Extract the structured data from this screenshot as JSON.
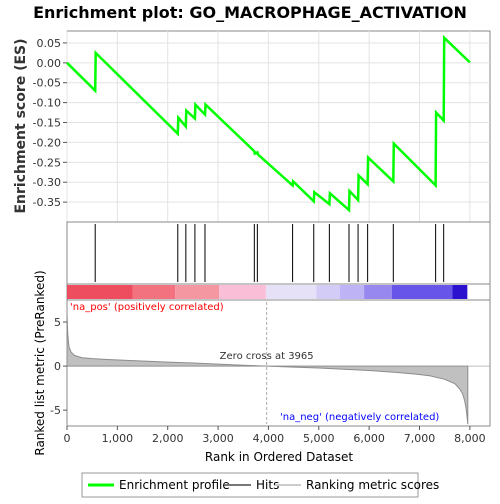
{
  "chart_data": {
    "type": "line",
    "title": "Enrichment plot: GO_MACROPHAGE_ACTIVATION",
    "xlabel": "Rank in Ordered Dataset",
    "x_ticks": [
      0,
      1000,
      2000,
      3000,
      4000,
      5000,
      6000,
      7000,
      8000
    ],
    "x_tick_labels": [
      "0",
      "1,000",
      "2,000",
      "3,000",
      "4,000",
      "5,000",
      "6,000",
      "7,000",
      "8,000"
    ],
    "xlim": [
      0,
      8400
    ],
    "es_panel": {
      "ylabel": "Enrichment score (ES)",
      "ylim": [
        -0.4,
        0.08
      ],
      "y_ticks": [
        0.05,
        0.0,
        -0.05,
        -0.1,
        -0.15,
        -0.2,
        -0.25,
        -0.3,
        -0.35
      ],
      "y_tick_labels": [
        "0.05",
        "0.00",
        "-0.05",
        "-0.10",
        "-0.15",
        "-0.20",
        "-0.25",
        "-0.30",
        "-0.35"
      ],
      "grid": true,
      "series": [
        {
          "name": "Enrichment profile",
          "color": "#00ff00",
          "x": [
            0,
            560,
            570,
            2200,
            2210,
            2360,
            2370,
            2540,
            2550,
            2740,
            2750,
            3720,
            3730,
            3780,
            3790,
            4480,
            4490,
            4900,
            4910,
            5210,
            5220,
            5600,
            5610,
            5780,
            5790,
            5970,
            5980,
            6480,
            6490,
            7320,
            7330,
            7480,
            7490,
            8000
          ],
          "y": [
            0.0,
            -0.07,
            0.025,
            -0.178,
            -0.138,
            -0.16,
            -0.12,
            -0.14,
            -0.105,
            -0.13,
            -0.105,
            -0.222,
            -0.228,
            -0.225,
            -0.23,
            -0.308,
            -0.298,
            -0.348,
            -0.325,
            -0.355,
            -0.328,
            -0.37,
            -0.322,
            -0.345,
            -0.283,
            -0.305,
            -0.238,
            -0.298,
            -0.203,
            -0.308,
            -0.125,
            -0.145,
            0.063,
            0.001
          ]
        }
      ]
    },
    "hits": [
      560,
      2200,
      2360,
      2540,
      2740,
      3720,
      3780,
      4480,
      4900,
      5210,
      5600,
      5780,
      5970,
      6480,
      7320,
      7480
    ],
    "hits_color": "#000000",
    "color_bar": {
      "segments": [
        {
          "from": 0,
          "to": 1300,
          "color": "#ee4d5f"
        },
        {
          "from": 1300,
          "to": 2150,
          "color": "#f2727f"
        },
        {
          "from": 2150,
          "to": 3020,
          "color": "#f597a0"
        },
        {
          "from": 3020,
          "to": 3950,
          "color": "#fabed6"
        },
        {
          "from": 3950,
          "to": 4950,
          "color": "#e6e1f7"
        },
        {
          "from": 4950,
          "to": 5420,
          "color": "#d2ccf7"
        },
        {
          "from": 5420,
          "to": 5900,
          "color": "#bdb3f5"
        },
        {
          "from": 5900,
          "to": 6450,
          "color": "#9688ee"
        },
        {
          "from": 6450,
          "to": 7650,
          "color": "#6655e8"
        },
        {
          "from": 7650,
          "to": 7950,
          "color": "#2c12cf"
        }
      ]
    },
    "ranked_panel": {
      "ylabel": "Ranked list metric (PreRanked)",
      "ylim": [
        -6.8,
        7.5
      ],
      "y_ticks": [
        5,
        0,
        -5
      ],
      "y_tick_labels": [
        "5",
        "0",
        "-5"
      ],
      "fill_color": "#c0c0c0",
      "line_color": "#8c8c8c",
      "metric_profile": {
        "rank": [
          0,
          15,
          40,
          80,
          150,
          300,
          500,
          800,
          1200,
          1600,
          2000,
          2500,
          3000,
          3500,
          3965,
          4500,
          5000,
          5500,
          6000,
          6500,
          6900,
          7200,
          7500,
          7700,
          7800,
          7860,
          7900,
          7930,
          7950,
          7960
        ],
        "value": [
          6.0,
          3.5,
          2.2,
          1.6,
          1.2,
          0.95,
          0.85,
          0.75,
          0.65,
          0.55,
          0.45,
          0.35,
          0.22,
          0.1,
          0.0,
          -0.12,
          -0.22,
          -0.35,
          -0.5,
          -0.7,
          -0.9,
          -1.1,
          -1.5,
          -2.0,
          -2.6,
          -3.2,
          -4.0,
          -5.0,
          -6.0,
          -6.6
        ]
      },
      "zero_cross_x": 3965,
      "zero_cross_label": "Zero cross at 3965",
      "pos_label": "'na_pos' (positively correlated)",
      "pos_label_color": "#ff0000",
      "neg_label": "'na_neg' (negatively correlated)",
      "neg_label_color": "#0000ff"
    },
    "legend": {
      "placement": "bottom",
      "entries": [
        {
          "label": "Enrichment profile",
          "color": "#00ff00"
        },
        {
          "label": "Hits",
          "color": "#777777"
        },
        {
          "label": "Ranking metric scores",
          "color": "#cccccc"
        }
      ]
    }
  }
}
